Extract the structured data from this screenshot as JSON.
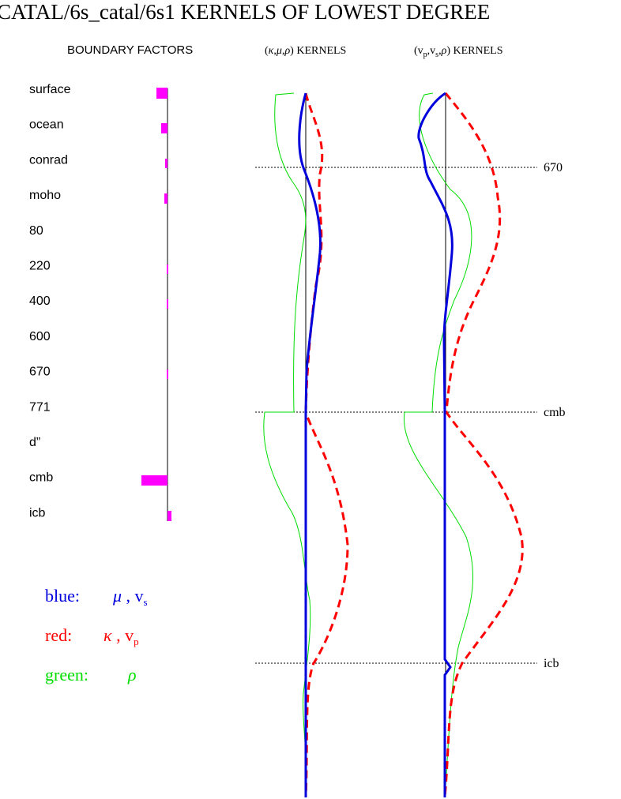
{
  "header": {
    "title": "CATAL/6s_catal/6s1 KERNELS OF LOWEST DEGREE",
    "boundary_heading": "BOUNDARY FACTORS",
    "kernels_1": [
      "(",
      "κ",
      ",",
      "μ",
      ",",
      "ρ",
      ")  KERNELS"
    ],
    "kernels_2": [
      "(v",
      "p",
      ",v",
      "s",
      ",",
      "ρ",
      ")  KERNELS"
    ]
  },
  "boundaries": [
    "surface",
    "ocean",
    "conrad",
    "moho",
    "80",
    "220",
    "400",
    "600",
    "670",
    "771",
    "d”",
    "cmb",
    "icb"
  ],
  "depth_labels": [
    "670",
    "cmb",
    "icb"
  ],
  "legend": [
    {
      "name": "blue:",
      "symbols": [
        "μ",
        " , v",
        "s"
      ]
    },
    {
      "name": "red:",
      "symbols": [
        "κ",
        " , v",
        "p"
      ]
    },
    {
      "name": "green:",
      "symbols": [
        "ρ"
      ]
    }
  ]
}
